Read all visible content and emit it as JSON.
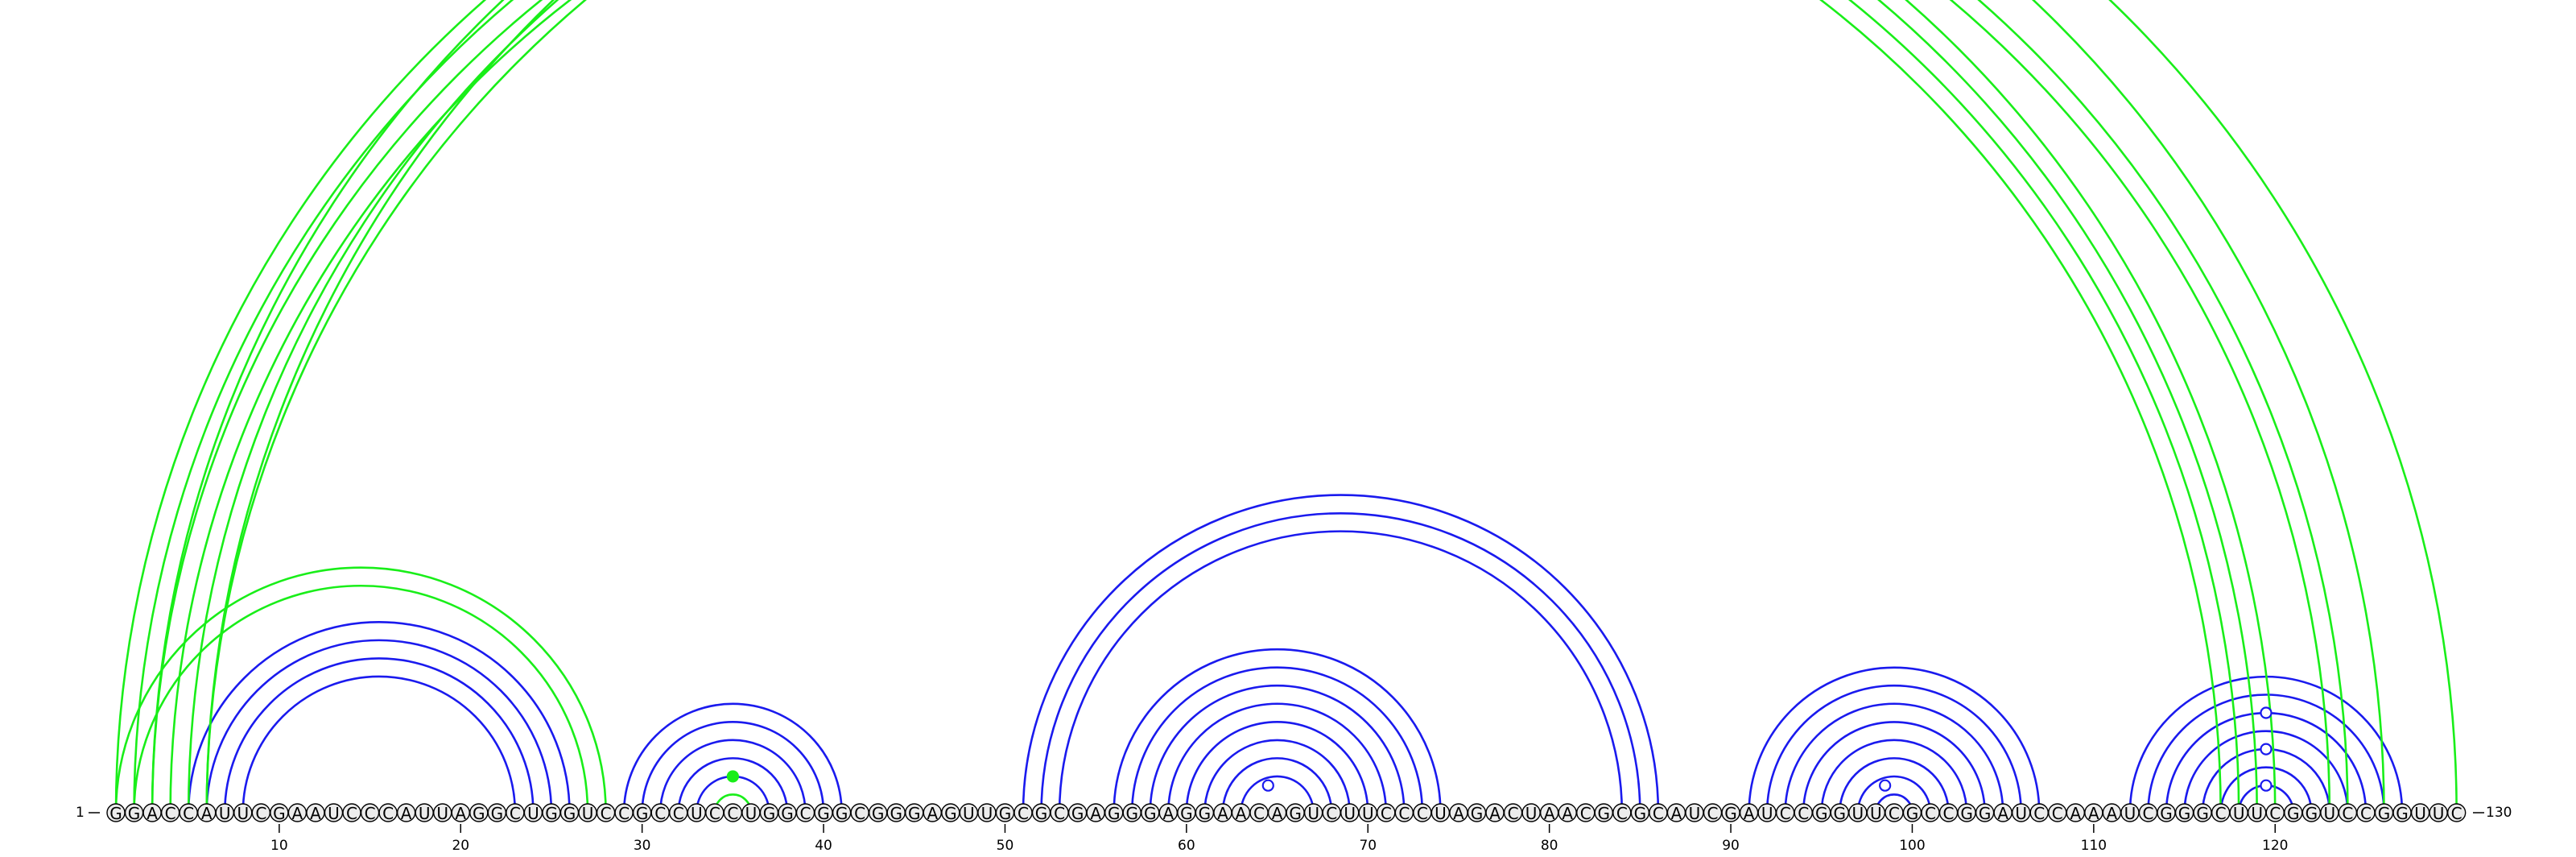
{
  "sequence": "GGACCAUUCGAAUCCCAUUAGGCUGGUCCGCCUCCUGGCGGCGGGAGUUGCGCGAGGGAGGAACAGUCUUCCCUAGACUAACGCGCAUCGAUCCGGUUCGCCGGAUCCAAAUCGGGCUUCGGUCCGGUUC",
  "length": 130,
  "start_label": "1",
  "end_label": "130",
  "tick_labels": [
    "10",
    "20",
    "30",
    "40",
    "50",
    "60",
    "70",
    "80",
    "90",
    "100",
    "110",
    "120"
  ],
  "colors": {
    "blue": "#1a1aee",
    "green": "#19ee19"
  },
  "blue_helices": [
    {
      "i": 5,
      "j": 26,
      "n": 4
    },
    {
      "i": 29,
      "j": 41,
      "n": 5
    },
    {
      "i": 51,
      "j": 86,
      "n": 3
    },
    {
      "i": 56,
      "j": 74,
      "n": 8
    },
    {
      "i": 91,
      "j": 107,
      "n": 8
    },
    {
      "i": 112,
      "j": 127,
      "n": 7
    }
  ],
  "green_helices": [
    {
      "i": 1,
      "j": 28,
      "n": 2
    },
    {
      "i": 1,
      "j": 120,
      "n": 4
    },
    {
      "i": 5,
      "j": 124,
      "n": 2
    },
    {
      "i": 3,
      "j": 126,
      "n": 1
    },
    {
      "i": 6,
      "j": 130,
      "n": 1
    },
    {
      "i": 34,
      "j": 36,
      "n": 1
    }
  ],
  "markers": [
    {
      "i": 33,
      "j": 37,
      "color": "green",
      "filled": true
    },
    {
      "i": 63,
      "j": 66,
      "color": "blue",
      "filled": false
    },
    {
      "i": 97,
      "j": 100,
      "color": "blue",
      "filled": false
    },
    {
      "i": 118,
      "j": 121,
      "color": "blue",
      "filled": false
    },
    {
      "i": 116,
      "j": 123,
      "color": "blue",
      "filled": false
    },
    {
      "i": 114,
      "j": 125,
      "color": "blue",
      "filled": false
    },
    {
      "i": 6,
      "j": 124,
      "color": "green",
      "filled": false
    }
  ]
}
